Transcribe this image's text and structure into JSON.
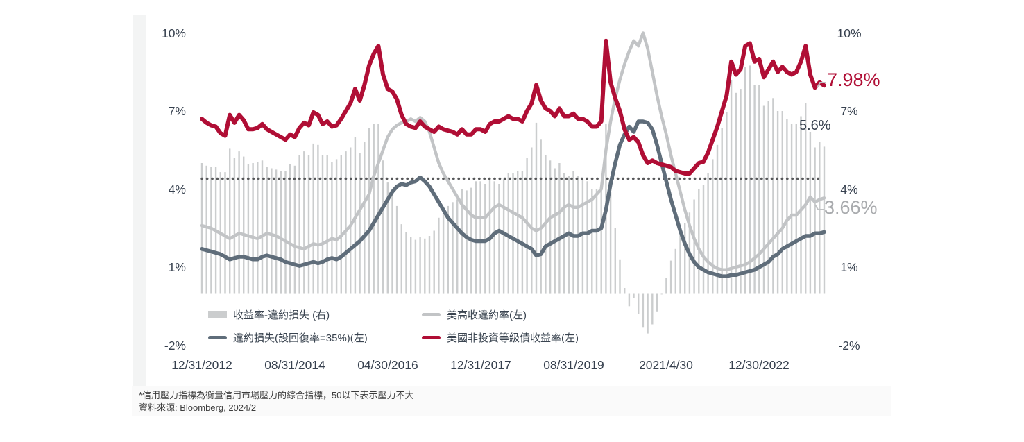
{
  "chart_data": {
    "type": "combo-bar-line",
    "x_monthly_start": "2012-12",
    "x_monthly_end": "2024-02",
    "x_tick_labels": [
      "12/31/2012",
      "08/31/2014",
      "04/30/2016",
      "12/31/2017",
      "08/31/2019",
      "2021/4/30",
      "12/30/2022"
    ],
    "x_tick_month_indices": [
      0,
      20,
      40,
      60,
      80,
      100,
      120
    ],
    "y_axis": {
      "left_ticks": [
        "10%",
        "7%",
        "4%",
        "1%",
        "-2%"
      ],
      "right_ticks": [
        "10%",
        "7%",
        "4%",
        "1%",
        "-2%"
      ],
      "tick_values": [
        10,
        7,
        4,
        1,
        -2
      ],
      "ylim": [
        -2,
        10
      ],
      "grid": false
    },
    "threshold_line": {
      "value": 4.4,
      "style": "dotted",
      "color": "#57585A"
    },
    "series": [
      {
        "id": "spread_bars",
        "label": "收益率-違約損失 (右)",
        "type": "bar",
        "axis": "right",
        "color": "#CBCDCE",
        "derived": "hy_yield minus default_loss"
      },
      {
        "id": "default_rate",
        "label": "美高收違約率(左)",
        "type": "line",
        "axis": "left",
        "color": "#C2C4C6",
        "values": [
          2.6,
          2.55,
          2.5,
          2.4,
          2.3,
          2.2,
          2.1,
          2.2,
          2.3,
          2.25,
          2.2,
          2.15,
          2.1,
          2.2,
          2.3,
          2.25,
          2.2,
          2.1,
          2.0,
          1.9,
          1.8,
          1.75,
          1.7,
          1.8,
          1.9,
          1.85,
          1.9,
          2.0,
          2.1,
          2.05,
          2.2,
          2.4,
          2.6,
          2.9,
          3.2,
          3.5,
          3.8,
          4.5,
          5.0,
          5.5,
          6.0,
          6.3,
          6.45,
          6.55,
          6.6,
          6.7,
          6.6,
          6.75,
          6.6,
          6.2,
          5.6,
          5.0,
          4.6,
          4.3,
          4.0,
          3.7,
          3.4,
          3.2,
          3.0,
          2.9,
          2.9,
          2.9,
          3.1,
          3.3,
          3.4,
          3.3,
          3.2,
          3.1,
          3.0,
          2.9,
          2.7,
          2.5,
          2.4,
          2.5,
          2.7,
          2.9,
          3.0,
          3.1,
          3.3,
          3.4,
          3.3,
          3.3,
          3.4,
          3.5,
          3.6,
          3.8,
          4.0,
          5.5,
          6.6,
          7.5,
          8.2,
          8.8,
          9.3,
          9.7,
          9.5,
          10.0,
          9.4,
          8.5,
          7.6,
          6.8,
          6.1,
          5.3,
          4.6,
          3.9,
          3.2,
          2.6,
          2.1,
          1.7,
          1.4,
          1.2,
          1.05,
          0.95,
          0.9,
          0.9,
          0.95,
          1.0,
          1.05,
          1.1,
          1.2,
          1.35,
          1.5,
          1.7,
          1.9,
          2.1,
          2.3,
          2.5,
          2.8,
          3.0,
          3.0,
          3.2,
          3.4,
          3.7,
          3.5,
          3.6,
          3.66
        ]
      },
      {
        "id": "default_loss",
        "label": "違約損失(設回復率=35%)(左)",
        "type": "line",
        "axis": "left",
        "color": "#5F6D7A",
        "values": [
          1.7,
          1.65,
          1.6,
          1.55,
          1.5,
          1.4,
          1.3,
          1.35,
          1.4,
          1.4,
          1.35,
          1.3,
          1.3,
          1.4,
          1.45,
          1.4,
          1.35,
          1.3,
          1.2,
          1.15,
          1.1,
          1.05,
          1.1,
          1.15,
          1.2,
          1.15,
          1.2,
          1.3,
          1.35,
          1.3,
          1.4,
          1.55,
          1.7,
          1.85,
          2.0,
          2.2,
          2.4,
          2.7,
          3.0,
          3.3,
          3.6,
          3.9,
          4.1,
          4.2,
          4.15,
          4.25,
          4.3,
          4.45,
          4.3,
          4.1,
          3.8,
          3.5,
          3.2,
          2.9,
          2.7,
          2.5,
          2.3,
          2.15,
          2.05,
          2.0,
          2.0,
          2.0,
          2.1,
          2.3,
          2.4,
          2.3,
          2.2,
          2.1,
          2.0,
          1.9,
          1.8,
          1.7,
          1.45,
          1.5,
          1.8,
          1.9,
          2.0,
          2.1,
          2.2,
          2.3,
          2.2,
          2.2,
          2.3,
          2.3,
          2.4,
          2.4,
          2.5,
          3.2,
          4.2,
          5.0,
          5.7,
          6.1,
          6.4,
          6.2,
          6.6,
          6.6,
          6.55,
          6.3,
          5.7,
          5.0,
          4.3,
          3.6,
          3.0,
          2.4,
          1.9,
          1.5,
          1.2,
          1.0,
          0.9,
          0.8,
          0.75,
          0.7,
          0.65,
          0.65,
          0.7,
          0.7,
          0.75,
          0.8,
          0.85,
          0.9,
          1.0,
          1.1,
          1.2,
          1.4,
          1.5,
          1.7,
          1.8,
          1.9,
          2.0,
          2.1,
          2.2,
          2.2,
          2.3,
          2.3,
          2.35
        ]
      },
      {
        "id": "hy_yield",
        "label": "美國非投資等級債收益率(左)",
        "type": "line",
        "axis": "left",
        "color": "#B00E35",
        "values": [
          6.7,
          6.55,
          6.45,
          6.4,
          6.15,
          6.05,
          6.85,
          6.55,
          6.85,
          6.65,
          6.3,
          6.3,
          6.35,
          6.5,
          6.3,
          6.2,
          6.1,
          6.0,
          5.9,
          6.1,
          6.0,
          6.35,
          6.55,
          6.45,
          6.95,
          6.85,
          6.5,
          6.6,
          6.4,
          6.45,
          6.7,
          7.0,
          7.3,
          7.85,
          7.4,
          8.0,
          8.75,
          9.2,
          9.5,
          8.4,
          7.85,
          7.75,
          7.45,
          6.85,
          6.5,
          6.4,
          6.35,
          6.6,
          6.4,
          6.3,
          6.2,
          6.4,
          6.3,
          6.25,
          6.2,
          6.1,
          6.3,
          6.1,
          6.1,
          6.3,
          6.3,
          6.2,
          6.5,
          6.6,
          6.6,
          6.7,
          6.8,
          6.7,
          6.7,
          6.6,
          7.0,
          7.3,
          8.0,
          7.4,
          7.1,
          7.0,
          6.8,
          7.1,
          6.8,
          6.8,
          6.9,
          6.7,
          6.7,
          6.6,
          6.4,
          6.4,
          6.6,
          9.7,
          8.1,
          7.5,
          7.0,
          6.3,
          5.9,
          6.0,
          5.8,
          5.3,
          5.0,
          5.1,
          5.0,
          4.95,
          4.9,
          4.85,
          4.7,
          4.65,
          4.6,
          4.6,
          4.8,
          5.0,
          5.05,
          5.4,
          5.9,
          6.4,
          7.0,
          7.6,
          8.9,
          8.4,
          8.6,
          9.5,
          9.6,
          8.9,
          9.0,
          8.3,
          8.6,
          8.9,
          8.5,
          8.7,
          8.5,
          8.4,
          8.5,
          8.9,
          9.5,
          8.4,
          7.9,
          8.1,
          7.98
        ]
      }
    ],
    "annotations": [
      {
        "id": "yield-latest",
        "text": "7.98%",
        "color": "#B00E35"
      },
      {
        "id": "spread-latest",
        "text": "5.6%",
        "color": "#36404E"
      },
      {
        "id": "default-rate-latest",
        "text": "3.66%",
        "color": "#A9ABAE"
      }
    ],
    "legend_position": "bottom-inside"
  },
  "footer": {
    "note": "*信用壓力指標為衡量信用市場壓力的綜合指標，50以下表示壓力不大",
    "source": "資料來源: Bloomberg, 2024/2"
  }
}
